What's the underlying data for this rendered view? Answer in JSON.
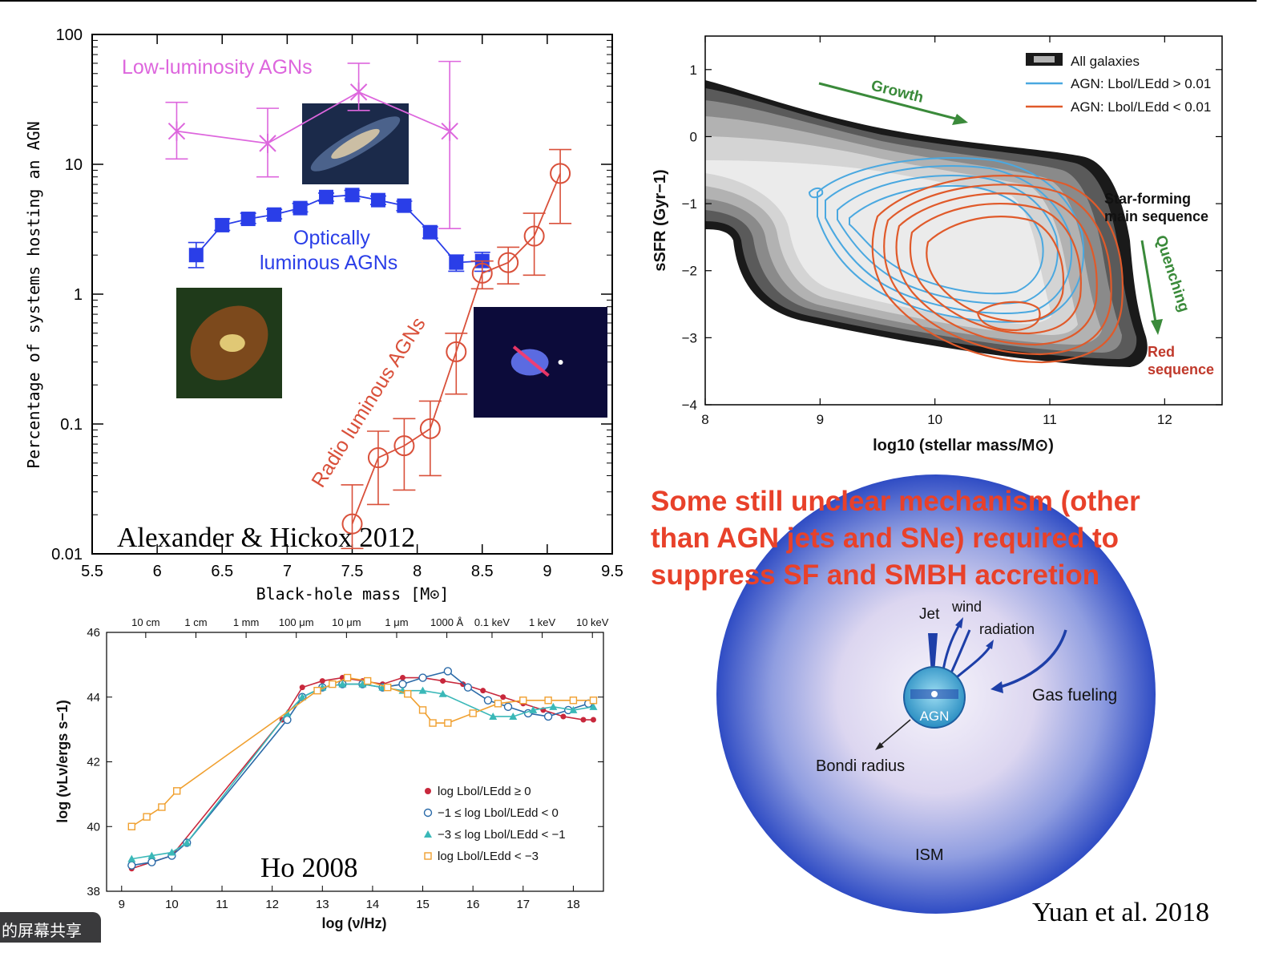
{
  "slide": {
    "statement": [
      "Some still unclear mechanism (other",
      "than AGN jets and SNe) required to",
      "suppress SF and SMBH accretion"
    ],
    "colors": {
      "statement": "#e8412a"
    }
  },
  "share_tab": {
    "label": "的屏幕共享"
  },
  "chart_data": [
    {
      "id": "agn-fraction",
      "type": "scatter",
      "citation": "Alexander & Hickox 2012",
      "xlabel": "Black-hole mass [M⊙]",
      "ylabel": "Percentage of systems hosting an AGN",
      "xlim": [
        5.5,
        9.5
      ],
      "ylim": [
        0.01,
        100
      ],
      "yscale": "log",
      "xticks": [
        "5.5",
        "6",
        "6.5",
        "7",
        "7.5",
        "8",
        "8.5",
        "9",
        "9.5"
      ],
      "yticks": [
        "0.01",
        "0.1",
        "1",
        "10",
        "100"
      ],
      "series": [
        {
          "name": "Low-luminosity AGNs",
          "color": "#dd66dd",
          "marker": "x",
          "x": [
            6.15,
            6.85,
            7.55,
            8.25
          ],
          "y": [
            18,
            14.5,
            36,
            18
          ],
          "ylo": [
            11,
            8,
            26,
            3.2
          ],
          "yhi": [
            30,
            27,
            60,
            62
          ]
        },
        {
          "name": "Optically luminous AGNs",
          "label_lines": [
            "Optically",
            "luminous AGNs"
          ],
          "color": "#2a3ee8",
          "marker": "square",
          "x": [
            6.3,
            6.5,
            6.7,
            6.9,
            7.1,
            7.3,
            7.5,
            7.7,
            7.9,
            8.1,
            8.3,
            8.5
          ],
          "y": [
            2.0,
            3.4,
            3.8,
            4.1,
            4.6,
            5.6,
            5.8,
            5.3,
            4.8,
            3.0,
            1.75,
            1.8
          ],
          "ylo": [
            1.6,
            3.1,
            3.5,
            3.8,
            4.3,
            5.2,
            5.4,
            4.9,
            4.4,
            2.7,
            1.5,
            1.5
          ],
          "yhi": [
            2.5,
            3.8,
            4.2,
            4.5,
            5.0,
            6.0,
            6.3,
            5.7,
            5.2,
            3.3,
            2.0,
            2.1
          ]
        },
        {
          "name": "Radio luminous AGNs",
          "color": "#d9503a",
          "marker": "circle",
          "x": [
            7.5,
            7.7,
            7.9,
            8.1,
            8.3,
            8.5,
            8.7,
            8.9,
            9.1
          ],
          "y": [
            0.017,
            0.055,
            0.068,
            0.092,
            0.36,
            1.45,
            1.75,
            2.8,
            8.5
          ],
          "ylo": [
            0.011,
            0.024,
            0.031,
            0.04,
            0.17,
            1.1,
            1.2,
            1.4,
            3.5
          ],
          "yhi": [
            0.034,
            0.088,
            0.11,
            0.15,
            0.5,
            1.8,
            2.3,
            4.2,
            13
          ]
        }
      ],
      "insets": [
        {
          "name": "spiral-galaxy-photo",
          "colors": [
            "#1b2a4a",
            "#d9c9a6",
            "#6d88b8"
          ]
        },
        {
          "name": "dusty-spiral-galaxy-photo",
          "colors": [
            "#1f3a1a",
            "#c8561f",
            "#e6d07a"
          ]
        },
        {
          "name": "radio-galaxy-photo",
          "colors": [
            "#0c0b3a",
            "#6a7cff",
            "#ff3a6a"
          ]
        }
      ]
    },
    {
      "id": "ssfr-mass",
      "type": "heatmap",
      "xlabel": "log10 (stellar mass/M⊙)",
      "ylabel": "sSFR (Gyr−1)",
      "xlim": [
        8,
        12.5
      ],
      "ylim": [
        -4,
        1.5
      ],
      "xticks": [
        "8",
        "9",
        "10",
        "11",
        "12"
      ],
      "yticks": [
        "1",
        "0",
        "−1",
        "−2",
        "−3",
        "−4"
      ],
      "legend": [
        {
          "label": "All galaxies",
          "color": "#777777"
        },
        {
          "label": "AGN: Lbol/LEdd > 0.01",
          "color": "#4aa8e0"
        },
        {
          "label": "AGN: Lbol/LEdd < 0.01",
          "color": "#e05a2a"
        }
      ],
      "annotations": [
        {
          "text": "Growth",
          "color": "#3a8a3a"
        },
        {
          "text": "Star-forming",
          "color": "#111111"
        },
        {
          "text": "main sequence",
          "color": "#111111"
        },
        {
          "text": "Quenching",
          "color": "#3a8a3a"
        },
        {
          "text": "Red",
          "color": "#c0392b"
        },
        {
          "text": "sequence",
          "color": "#c0392b"
        }
      ]
    },
    {
      "id": "sed",
      "type": "line",
      "citation": "Ho 2008",
      "xlabel": "log (ν/Hz)",
      "ylabel": "log (νLν/ergs s−1)",
      "xlim": [
        8.7,
        18.6
      ],
      "ylim": [
        38,
        46
      ],
      "xticks": [
        "9",
        "10",
        "11",
        "12",
        "13",
        "14",
        "15",
        "16",
        "17",
        "18"
      ],
      "yticks": [
        "38",
        "40",
        "42",
        "44",
        "46"
      ],
      "top_axis": [
        "10 cm",
        "1 cm",
        "1 mm",
        "100 μm",
        "10 μm",
        "1 μm",
        "1000 Å",
        "0.1 keV",
        "1 keV",
        "10 keV"
      ],
      "top_axis_x": [
        9.48,
        10.48,
        11.48,
        12.48,
        13.48,
        14.48,
        15.48,
        16.38,
        17.38,
        18.38
      ],
      "series": [
        {
          "name": "log Lbol/LEdd ≥ 0",
          "color": "#c8283c",
          "marker": "dot",
          "x": [
            9.2,
            9.6,
            10.0,
            12.2,
            12.6,
            13.0,
            13.4,
            13.8,
            14.2,
            14.6,
            15.0,
            15.4,
            15.8,
            16.2,
            16.6,
            17.0,
            17.4,
            17.8,
            18.2,
            18.4
          ],
          "y": [
            38.7,
            38.9,
            39.1,
            43.3,
            44.3,
            44.5,
            44.6,
            44.5,
            44.4,
            44.6,
            44.6,
            44.5,
            44.4,
            44.2,
            44.0,
            43.8,
            43.6,
            43.4,
            43.3,
            43.3
          ]
        },
        {
          "name": "−1 ≤ log Lbol/LEdd < 0",
          "color": "#2a6aa8",
          "marker": "open-circle",
          "x": [
            9.2,
            9.6,
            10.0,
            10.3,
            12.3,
            12.6,
            13.0,
            13.4,
            13.8,
            14.2,
            14.6,
            15.0,
            15.5,
            15.9,
            16.3,
            16.7,
            17.1,
            17.5,
            17.9,
            18.3
          ],
          "y": [
            38.8,
            38.9,
            39.1,
            39.5,
            43.3,
            44.0,
            44.3,
            44.4,
            44.4,
            44.3,
            44.4,
            44.6,
            44.8,
            44.3,
            43.9,
            43.7,
            43.5,
            43.4,
            43.6,
            43.8
          ]
        },
        {
          "name": "−3 ≤ log Lbol/LEdd < −1",
          "color": "#3ab8b8",
          "marker": "triangle",
          "x": [
            9.2,
            9.6,
            10.0,
            10.3,
            12.3,
            12.6,
            13.0,
            13.4,
            13.8,
            14.2,
            14.6,
            15.0,
            15.4,
            16.4,
            16.8,
            17.2,
            17.6,
            18.0,
            18.4
          ],
          "y": [
            39.0,
            39.1,
            39.2,
            39.5,
            43.5,
            44.0,
            44.3,
            44.4,
            44.4,
            44.3,
            44.2,
            44.2,
            44.1,
            43.4,
            43.4,
            43.6,
            43.7,
            43.6,
            43.7
          ]
        },
        {
          "name": "log Lbol/LEdd < −3",
          "color": "#f0a030",
          "marker": "open-square",
          "x": [
            9.2,
            9.5,
            9.8,
            10.1,
            12.9,
            13.2,
            13.5,
            13.9,
            14.3,
            14.7,
            15.0,
            15.2,
            15.5,
            16.0,
            16.5,
            17.0,
            17.5,
            18.0,
            18.4
          ],
          "y": [
            40.0,
            40.3,
            40.6,
            41.1,
            44.2,
            44.4,
            44.6,
            44.5,
            44.3,
            44.1,
            43.6,
            43.2,
            43.2,
            43.5,
            43.8,
            43.9,
            43.9,
            43.9,
            43.9
          ]
        }
      ]
    }
  ],
  "diagram": {
    "citation": "Yuan et al. 2018",
    "labels": {
      "jet": "Jet",
      "wind": "wind",
      "radiation": "radiation",
      "gas_fueling": "Gas fueling",
      "agn": "AGN",
      "bondi_radius": "Bondi radius",
      "ism": "ISM"
    }
  }
}
